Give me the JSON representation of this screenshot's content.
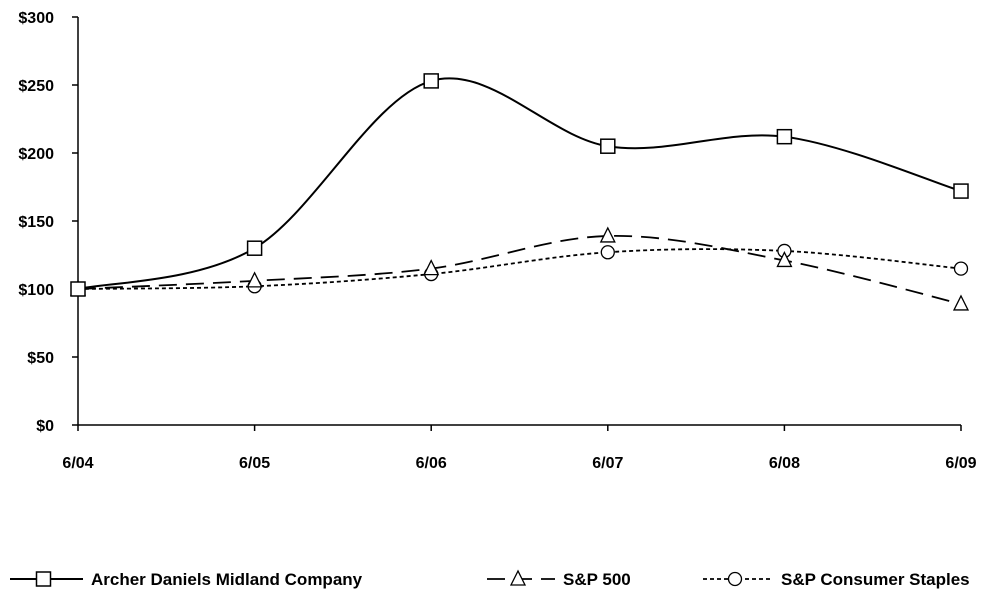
{
  "chart_data": {
    "type": "line",
    "title": "",
    "xlabel": "",
    "ylabel": "",
    "categories": [
      "6/04",
      "6/05",
      "6/06",
      "6/07",
      "6/08",
      "6/09"
    ],
    "ylim": [
      0,
      300
    ],
    "y_ticks": [
      0,
      50,
      100,
      150,
      200,
      250,
      300
    ],
    "y_tick_labels": [
      "$0",
      "$50",
      "$100",
      "$150",
      "$200",
      "$250",
      "$300"
    ],
    "grid": false,
    "legend_position": "bottom",
    "series": [
      {
        "name": "Archer Daniels Midland Company",
        "values": [
          100,
          130,
          253,
          205,
          212,
          172
        ],
        "marker": "square",
        "dash": "solid",
        "color": "#000000"
      },
      {
        "name": "S&P 500",
        "values": [
          100,
          106,
          115,
          139,
          121,
          89
        ],
        "marker": "triangle",
        "dash": "long-dash",
        "color": "#000000"
      },
      {
        "name": "S&P Consumer Staples",
        "values": [
          100,
          102,
          111,
          127,
          128,
          115
        ],
        "marker": "circle",
        "dash": "short-dash",
        "color": "#000000"
      }
    ]
  }
}
